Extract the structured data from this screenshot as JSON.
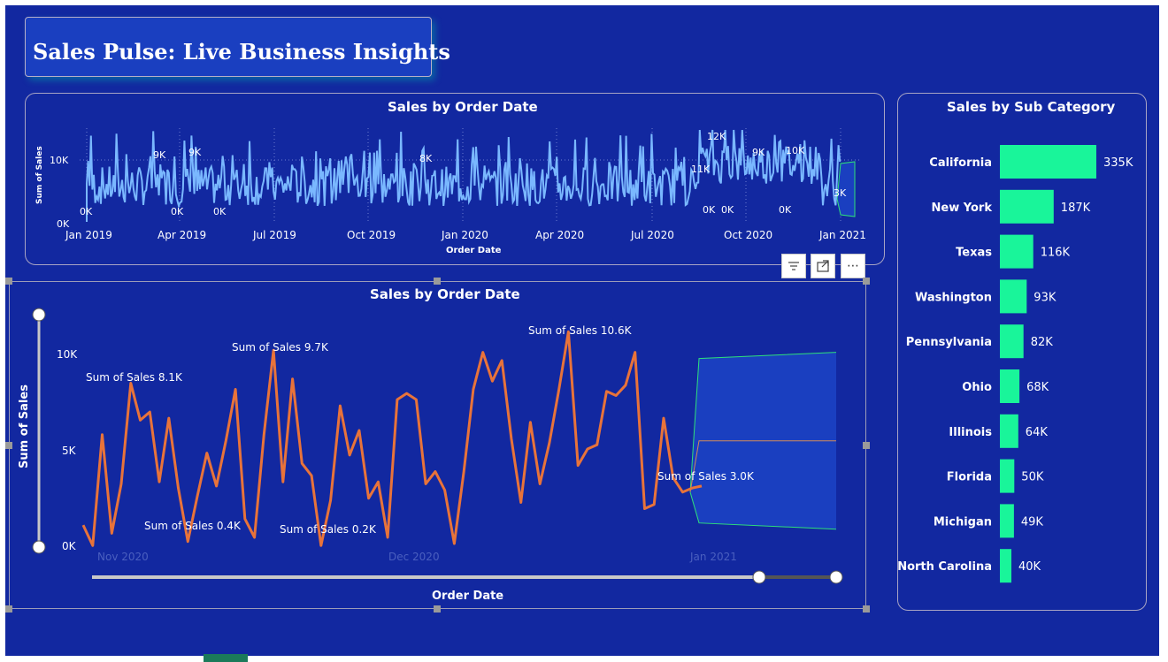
{
  "title": "Sales Pulse: Live Business Insights",
  "toolbar": {
    "filter_icon": "filter-icon",
    "focus_icon": "focus-mode-icon",
    "more_label": "⋯"
  },
  "colors": {
    "canvas": "#1228a0",
    "top_chart_line": "#7ab8ff",
    "main_line": "#e8733a",
    "forecast_band": "#1a3fc0",
    "forecast_edge": "#2ee07a",
    "bars": "#19f59a"
  },
  "top_chart": {
    "title": "Sales by Order Date",
    "xlabel": "Order Date",
    "ylabel": "Sum of Sales",
    "y_ticks": [
      "10K",
      "0K"
    ],
    "x_ticks": [
      "Jan 2019",
      "Apr 2019",
      "Jul 2019",
      "Oct 2019",
      "Jan 2020",
      "Apr 2020",
      "Jul 2020",
      "Oct 2020",
      "Jan 2021"
    ],
    "peak_labels": [
      "9K",
      "9K",
      "8K",
      "12K",
      "11K",
      "9K",
      "10K",
      "3K"
    ],
    "low_labels": [
      "0K",
      "0K",
      "0K",
      "0K",
      "0K",
      "0K"
    ]
  },
  "main_chart": {
    "title": "Sales by Order Date",
    "xlabel": "Order Date",
    "ylabel": "Sum of Sales",
    "y_ticks": [
      "10K",
      "5K",
      "0K"
    ],
    "x_ticks": [
      "Nov 2020",
      "Dec 2020",
      "Jan 2021"
    ],
    "annotations": [
      "Sum of Sales 8.1K",
      "Sum of Sales 9.7K",
      "Sum of Sales 10.6K",
      "Sum of Sales 0.4K",
      "Sum of Sales 0.2K",
      "Sum of Sales 3.0K"
    ]
  },
  "chart_data": [
    {
      "type": "line",
      "title": "Sales by Order Date",
      "xlabel": "Order Date",
      "ylabel": "Sum of Sales",
      "series": [
        {
          "values": [
            1.2,
            0.2,
            5.6,
            0.8,
            3.2,
            8.1,
            6.3,
            6.7,
            3.3,
            6.4,
            3.0,
            0.4,
            2.6,
            4.7,
            3.1,
            5.3,
            7.8,
            1.5,
            0.6,
            5.6,
            9.7,
            3.3,
            8.3,
            4.2,
            3.6,
            0.2,
            2.4,
            7.0,
            4.6,
            5.8,
            2.5,
            3.3,
            0.6,
            7.3,
            7.6,
            7.3,
            3.2,
            3.8,
            2.9,
            0.3,
            3.8,
            7.8,
            9.6,
            8.2,
            9.2,
            5.4,
            2.3,
            6.2,
            3.2,
            5.2,
            7.8,
            10.6,
            4.1,
            4.9,
            5.1,
            7.7,
            7.5,
            8.0,
            9.6,
            2.0,
            2.2,
            6.4,
            3.5,
            2.8,
            3.0,
            3.1
          ]
        }
      ],
      "ylim": [
        0,
        11
      ],
      "y_ticks": [
        "0K",
        "5K",
        "10K"
      ],
      "x_ticks": [
        "Nov 2020",
        "Dec 2020",
        "Jan 2021"
      ],
      "forecast": {
        "upper": [
          9.3,
          9.6
        ],
        "mid": [
          5.3,
          5.3
        ],
        "lower": [
          1.3,
          1.0
        ]
      }
    },
    {
      "type": "bar",
      "title": "Sales by Sub Category",
      "categories": [
        "California",
        "New York",
        "Texas",
        "Washington",
        "Pennsylvania",
        "Ohio",
        "Illinois",
        "Florida",
        "Michigan",
        "North Carolina"
      ],
      "values": [
        335,
        187,
        116,
        93,
        82,
        68,
        64,
        50,
        49,
        40
      ],
      "value_labels": [
        "335K",
        "187K",
        "116K",
        "93K",
        "82K",
        "68K",
        "64K",
        "50K",
        "49K",
        "40K"
      ],
      "orientation": "horizontal"
    }
  ],
  "bar_chart": {
    "title": "Sales by Sub Category"
  }
}
